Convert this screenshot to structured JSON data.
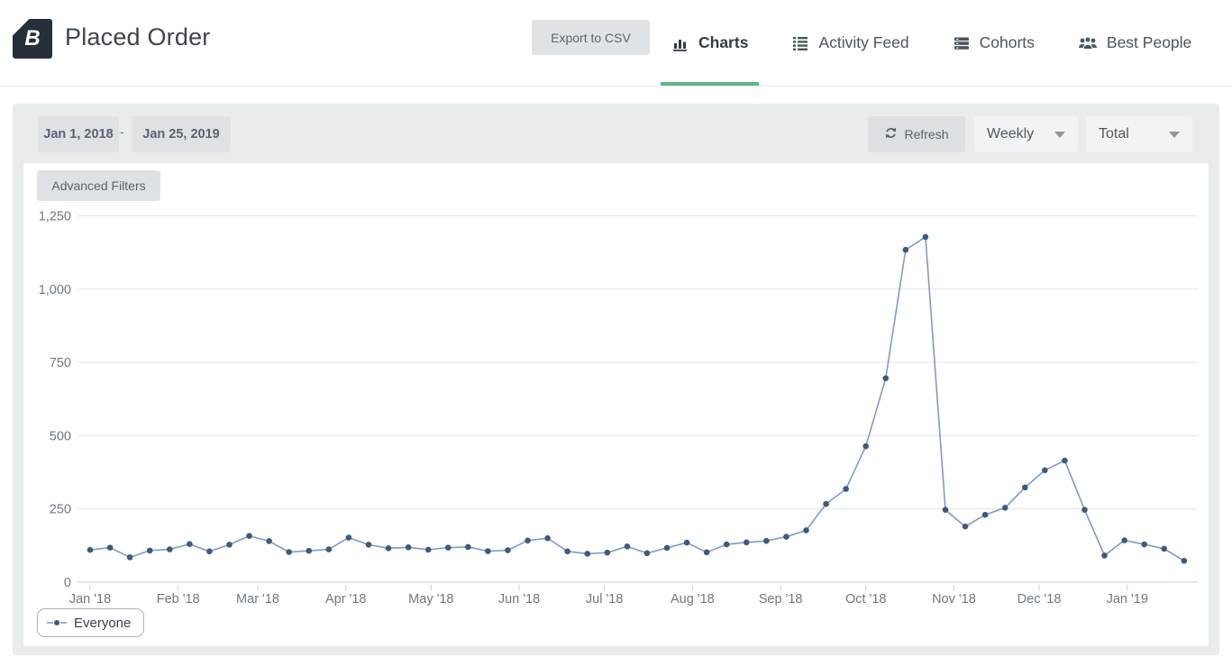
{
  "header": {
    "logo_letter": "B",
    "title": "Placed Order",
    "export_label": "Export to CSV",
    "tabs": [
      {
        "label": "Charts",
        "icon": "bar-chart-icon",
        "active": true
      },
      {
        "label": "Activity Feed",
        "icon": "list-icon",
        "active": false
      },
      {
        "label": "Cohorts",
        "icon": "stacked-rows-icon",
        "active": false
      },
      {
        "label": "Best People",
        "icon": "people-icon",
        "active": false
      }
    ]
  },
  "toolbar": {
    "date_start": "Jan 1, 2018",
    "date_separator": "-",
    "date_end": "Jan 25, 2019",
    "refresh_label": "Refresh",
    "interval_selected": "Weekly",
    "metric_selected": "Total",
    "advanced_filters_label": "Advanced Filters"
  },
  "legend": {
    "label": "Everyone"
  },
  "colors": {
    "accent_green": "#5cb884",
    "line": "#7e9cc2",
    "point": "#3d5a7e",
    "grid": "#e0e3e6",
    "axis": "#c9ced3",
    "axis_text": "#6e7882",
    "panel_bg": "#e9eced",
    "button_bg": "#dee2e5"
  },
  "chart_data": {
    "type": "line",
    "title": "Placed Order",
    "x_start_date": "Jan 1, 2018",
    "x_end_date": "Jan 25, 2019",
    "x_interval": "weekly",
    "grid": "horizontal",
    "legend_position": "bottom-left",
    "ylim": [
      0,
      1250
    ],
    "y_ticks": [
      0,
      250,
      500,
      750,
      1000,
      1250
    ],
    "x_ticks": [
      {
        "label": "Jan '18",
        "day": 0
      },
      {
        "label": "Feb '18",
        "day": 31
      },
      {
        "label": "Mar '18",
        "day": 59
      },
      {
        "label": "Apr '18",
        "day": 90
      },
      {
        "label": "May '18",
        "day": 120
      },
      {
        "label": "Jun '18",
        "day": 151
      },
      {
        "label": "Jul '18",
        "day": 181
      },
      {
        "label": "Aug '18",
        "day": 212
      },
      {
        "label": "Sep '18",
        "day": 243
      },
      {
        "label": "Oct '18",
        "day": 273
      },
      {
        "label": "Nov '18",
        "day": 304
      },
      {
        "label": "Dec '18",
        "day": 334
      },
      {
        "label": "Jan '19",
        "day": 365
      }
    ],
    "series": [
      {
        "name": "Everyone",
        "values": [
          110,
          118,
          85,
          108,
          112,
          130,
          105,
          128,
          158,
          140,
          103,
          107,
          112,
          152,
          128,
          116,
          119,
          111,
          118,
          120,
          106,
          109,
          142,
          150,
          105,
          97,
          101,
          122,
          99,
          117,
          135,
          102,
          129,
          136,
          141,
          155,
          177,
          267,
          318,
          464,
          696,
          1134,
          1178,
          247,
          190,
          230,
          254,
          323,
          382,
          415,
          247,
          91,
          143,
          129,
          114,
          73
        ]
      }
    ]
  }
}
